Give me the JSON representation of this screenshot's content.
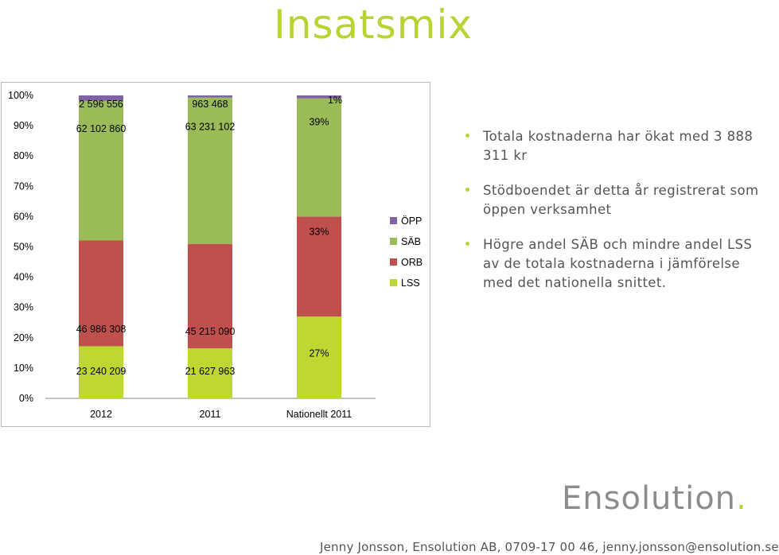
{
  "slide": {
    "title": "Insatsmix",
    "bullets": [
      "Totala kostnaderna har ökat med 3 888 311 kr",
      "Stödboendet är detta år registrerat som öppen verksamhet",
      "Högre andel SÄB och mindre andel LSS av de totala kostnaderna i jämförelse med det nationella snittet."
    ],
    "logo_text": "Ensolution",
    "logo_dot": ".",
    "footer": "Jenny Jonsson, Ensolution AB, 0709-17 00 46, jenny.jonsson@ensolution.se"
  },
  "colors": {
    "title": "#b9d332",
    "LSS": "#bfd730",
    "ORB": "#c0504d",
    "SÄB": "#9bbb59",
    "ÖPP": "#8064a2"
  },
  "chart_data": {
    "type": "bar",
    "stacked": true,
    "percent_stacked": true,
    "categories": [
      "2012",
      "2011",
      "Nationellt 2011"
    ],
    "yticks": [
      "0%",
      "10%",
      "20%",
      "30%",
      "40%",
      "50%",
      "60%",
      "70%",
      "80%",
      "90%",
      "100%"
    ],
    "ylim": [
      0,
      100
    ],
    "legend_position": "right",
    "series": [
      {
        "name": "LSS",
        "values": [
          17.2,
          16.5,
          27
        ],
        "labels": [
          "23 240 209",
          "21 627 963",
          "27%"
        ]
      },
      {
        "name": "ORB",
        "values": [
          34.9,
          34.5,
          33
        ],
        "labels": [
          "46 986 308",
          "45 215 090",
          "33%"
        ]
      },
      {
        "name": "SÄB",
        "values": [
          46.1,
          48.3,
          39
        ],
        "labels": [
          "62 102 860",
          "63 231 102",
          "39%"
        ]
      },
      {
        "name": "ÖPP",
        "values": [
          1.8,
          0.7,
          1
        ],
        "labels": [
          "2 596 556",
          "963 468",
          "1%"
        ]
      }
    ]
  }
}
